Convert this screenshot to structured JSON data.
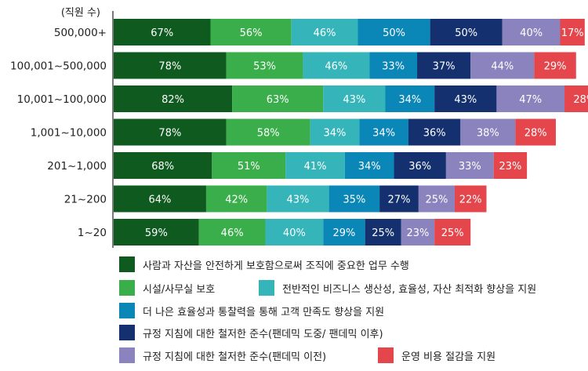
{
  "chart_data": {
    "type": "bar",
    "orientation": "horizontal",
    "stacked": true,
    "value_format": "percent",
    "unit_label": "(직원 수)",
    "categories": [
      "500,000+",
      "100,001~500,000",
      "10,001~100,000",
      "1,001~10,000",
      "201~1,000",
      "21~200",
      "1~20"
    ],
    "series": [
      {
        "name": "사람과 자산을 안전하게 보호함으로써 조직에 중요한 업무 수행",
        "color": "#0f5a1f",
        "values": [
          67,
          78,
          82,
          78,
          68,
          64,
          59
        ]
      },
      {
        "name": "시설/사무실 보호",
        "color": "#3aae4a",
        "values": [
          56,
          53,
          63,
          58,
          51,
          42,
          46
        ]
      },
      {
        "name": "전반적인 비즈니스 생산성, 효율성, 자산 최적화 향상을 지원",
        "color": "#35b5b9",
        "values": [
          46,
          46,
          43,
          34,
          41,
          43,
          40
        ]
      },
      {
        "name": "더 나은 효율성과 통찰력을 통해 고객 만족도 향상을 지원",
        "color": "#0a86b7",
        "values": [
          50,
          33,
          34,
          34,
          34,
          35,
          29
        ]
      },
      {
        "name": "규정 지침에 대한 철저한 준수(팬데믹 도중/ 팬데믹 이후)",
        "color": "#14306e",
        "values": [
          50,
          37,
          43,
          36,
          36,
          27,
          25
        ]
      },
      {
        "name": "규정 지침에 대한 철저한 준수(팬데믹 이전)",
        "color": "#8a83bd",
        "values": [
          40,
          44,
          47,
          38,
          33,
          25,
          23
        ]
      },
      {
        "name": "운영 비용 절감을 지원",
        "color": "#e4464b",
        "values": [
          17,
          29,
          28,
          28,
          23,
          22,
          25
        ]
      }
    ],
    "legend_position": "bottom",
    "grid": false
  }
}
